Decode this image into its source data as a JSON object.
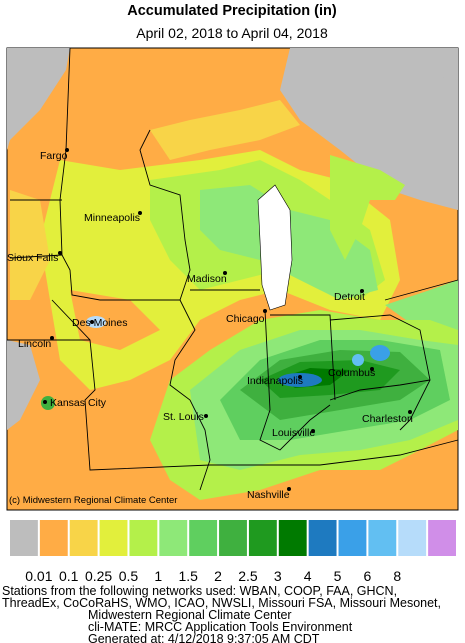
{
  "header": {
    "title": "Accumulated Precipitation (in)",
    "subtitle": "April 02, 2018 to April 04, 2018"
  },
  "map": {
    "cities": [
      "Fargo",
      "Minneapolis",
      "Sioux Falls",
      "Madison",
      "Detroit",
      "Des Moines",
      "Chicago",
      "Lincoln",
      "Indianapolis",
      "Columbus",
      "Kansas City",
      "St. Louis",
      "Louisville",
      "Charleston",
      "Nashville"
    ],
    "credit": "(c) Midwestern Regional Climate Center"
  },
  "legend": {
    "colors": [
      "#bdbdbd",
      "#ffac45",
      "#f8d448",
      "#e2ef3c",
      "#b4f04a",
      "#8ee878",
      "#5fcf5f",
      "#3fb03f",
      "#1f9a1f",
      "#007a00",
      "#1e7ac0",
      "#3aa0e8",
      "#62bff2",
      "#b6dcfa",
      "#d08ee8"
    ],
    "labels": [
      "0.01",
      "0.1",
      "0.25",
      "0.5",
      "1",
      "1.5",
      "2",
      "2.5",
      "3",
      "4",
      "5",
      "6",
      "8"
    ]
  },
  "footer": {
    "lines": [
      "Stations from the following networks used: WBAN, COOP, FAA, GHCN,",
      "ThreadEx, CoCoRaHS, WMO, ICAO, NWSLI, Missouri FSA, Missouri Mesonet,",
      "Midwestern Regional Climate Center",
      "cli-MATE: MRCC Application Tools Environment",
      "Generated at: 4/12/2018 9:37:05 AM CDT"
    ]
  }
}
